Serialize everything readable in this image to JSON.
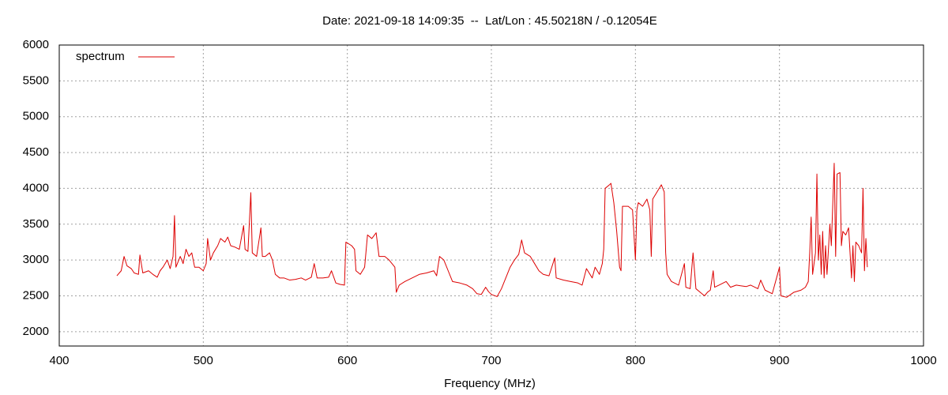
{
  "chart_data": {
    "type": "line",
    "title": "Date: 2021-09-18 14:09:35  --  Lat/Lon : 45.50218N / -0.12054E",
    "xlabel": "Frequency (MHz)",
    "xlim": [
      400,
      1000
    ],
    "xticks": [
      400,
      500,
      600,
      700,
      800,
      900,
      1000
    ],
    "ylim": [
      1800,
      6000
    ],
    "yticks": [
      2000,
      2500,
      3000,
      3500,
      4000,
      4500,
      5000,
      5500,
      6000
    ],
    "grid": true,
    "legend": "top-left",
    "x": [
      440,
      443,
      445,
      447,
      450,
      452,
      455,
      456,
      458,
      462,
      465,
      468,
      470,
      472,
      475,
      477,
      479,
      480,
      481,
      484,
      486,
      488,
      490,
      492,
      494,
      497,
      500,
      502,
      503,
      505,
      507,
      510,
      512,
      515,
      517,
      519,
      522,
      525,
      528,
      529,
      531,
      533,
      534,
      537,
      540,
      541,
      543,
      546,
      548,
      550,
      553,
      556,
      560,
      564,
      568,
      571,
      575,
      577,
      579,
      583,
      587,
      589,
      592,
      595,
      598,
      599,
      603,
      605,
      606,
      609,
      612,
      614,
      617,
      620,
      622,
      626,
      629,
      631,
      633,
      634,
      636,
      640,
      645,
      650,
      655,
      660,
      662,
      664,
      667,
      670,
      673,
      678,
      683,
      687,
      690,
      693,
      696,
      698,
      700,
      704,
      707,
      710,
      713,
      716,
      719,
      721,
      723,
      727,
      730,
      733,
      736,
      740,
      744,
      745,
      750,
      755,
      760,
      763,
      766,
      770,
      772,
      775,
      777,
      778,
      779,
      782,
      783,
      785,
      787,
      789,
      790,
      791,
      795,
      798,
      800,
      801,
      802,
      805,
      808,
      810,
      811,
      812,
      815,
      818,
      820,
      821,
      822,
      825,
      830,
      834,
      835,
      838,
      840,
      842,
      845,
      848,
      850,
      852,
      854,
      855,
      858,
      863,
      866,
      870,
      873,
      877,
      880,
      885,
      887,
      890,
      895,
      900,
      901,
      905,
      910,
      915,
      918,
      920,
      921,
      922,
      923,
      925,
      926,
      927,
      928,
      929,
      930,
      931,
      932,
      933,
      935,
      936,
      938,
      939,
      940,
      942,
      943,
      944,
      946,
      948,
      950,
      951,
      952,
      953,
      955,
      957,
      958,
      959,
      960,
      961
    ],
    "series": [
      {
        "name": "spectrum",
        "color": "#dd0000",
        "values": [
          2780,
          2850,
          3050,
          2920,
          2880,
          2820,
          2800,
          3070,
          2820,
          2850,
          2800,
          2760,
          2850,
          2900,
          3000,
          2880,
          3050,
          3620,
          2900,
          3050,
          2950,
          3150,
          3050,
          3100,
          2900,
          2900,
          2850,
          2950,
          3300,
          3000,
          3100,
          3200,
          3300,
          3250,
          3320,
          3200,
          3180,
          3150,
          3480,
          3150,
          3120,
          3940,
          3100,
          3050,
          3450,
          3050,
          3050,
          3100,
          3000,
          2800,
          2750,
          2750,
          2720,
          2730,
          2750,
          2720,
          2760,
          2950,
          2750,
          2750,
          2760,
          2850,
          2680,
          2660,
          2650,
          3250,
          3200,
          3150,
          2850,
          2800,
          2900,
          3350,
          3300,
          3380,
          3050,
          3050,
          3000,
          2950,
          2900,
          2550,
          2650,
          2700,
          2750,
          2800,
          2820,
          2850,
          2780,
          3050,
          3000,
          2850,
          2700,
          2680,
          2650,
          2600,
          2530,
          2520,
          2620,
          2560,
          2520,
          2490,
          2600,
          2750,
          2900,
          3000,
          3080,
          3280,
          3100,
          3050,
          2950,
          2850,
          2800,
          2780,
          3030,
          2750,
          2720,
          2700,
          2680,
          2650,
          2880,
          2750,
          2900,
          2800,
          2950,
          3150,
          4000,
          4050,
          4070,
          3800,
          3400,
          2900,
          2850,
          3750,
          3750,
          3700,
          3000,
          3700,
          3800,
          3750,
          3850,
          3700,
          3050,
          3850,
          3950,
          4050,
          3950,
          3100,
          2800,
          2700,
          2650,
          2950,
          2620,
          2600,
          3100,
          2600,
          2550,
          2500,
          2550,
          2580,
          2850,
          2620,
          2650,
          2700,
          2620,
          2650,
          2640,
          2630,
          2650,
          2600,
          2720,
          2580,
          2530,
          2900,
          2500,
          2480,
          2550,
          2580,
          2620,
          2700,
          3100,
          3600,
          2800,
          3100,
          4200,
          3000,
          3350,
          2800,
          3400,
          2750,
          3200,
          2800,
          3500,
          3200,
          4350,
          3050,
          4200,
          4220,
          3200,
          3400,
          3350,
          3450,
          2750,
          3200,
          2700,
          3250,
          3200,
          3100,
          4000,
          2850,
          3300,
          2900
        ]
      }
    ]
  }
}
